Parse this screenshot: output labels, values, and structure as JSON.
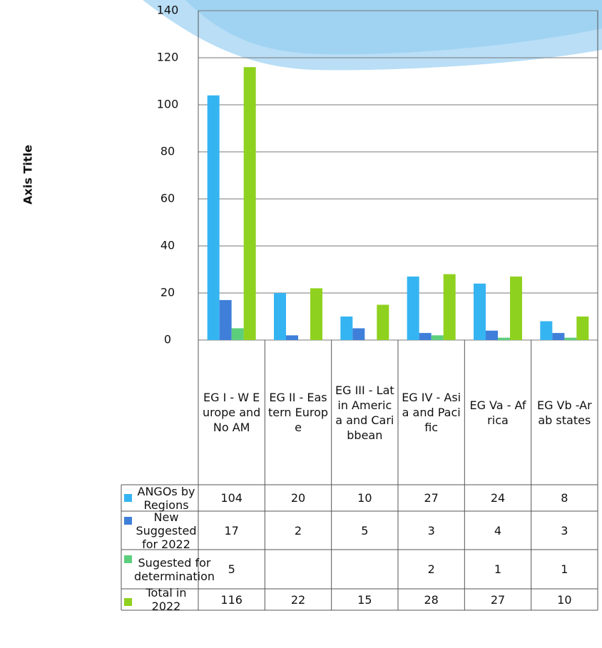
{
  "chart_data": {
    "type": "bar",
    "y_axis_title": "Axis Title",
    "categories": [
      "EG I - W Europe and No AM",
      "EG II - Eastern Europe",
      "EG III - Latin America and Caribbean",
      "EG IV - Asia and Pacific",
      "EG Va - Africa",
      "EG Vb -Arab states"
    ],
    "series": [
      {
        "name": "ANGOs by Regions",
        "color": "#35b4f2",
        "values": [
          104,
          20,
          10,
          27,
          24,
          8
        ]
      },
      {
        "name": "New Suggested for 2022",
        "color": "#3f7fd9",
        "values": [
          17,
          2,
          5,
          3,
          4,
          3
        ]
      },
      {
        "name": "Sugested for determination",
        "color": "#5ccf7c",
        "values": [
          5,
          null,
          null,
          2,
          1,
          1
        ]
      },
      {
        "name": "Total in 2022",
        "color": "#8fd11f",
        "values": [
          116,
          22,
          15,
          28,
          27,
          10
        ]
      }
    ],
    "ylim": [
      0,
      140
    ],
    "yticks": [
      0,
      20,
      40,
      60,
      80,
      100,
      120,
      140
    ],
    "grid": true,
    "data_table": true
  }
}
